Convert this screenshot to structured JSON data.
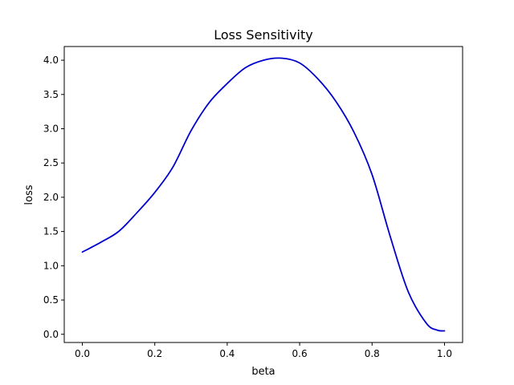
{
  "chart_data": {
    "type": "line",
    "title": "Loss Sensitivity",
    "xlabel": "beta",
    "ylabel": "loss",
    "xlim": [
      -0.05,
      1.05
    ],
    "ylim": [
      -0.12,
      4.2
    ],
    "xticks": [
      0.0,
      0.2,
      0.4,
      0.6,
      0.8,
      1.0
    ],
    "xtick_labels": [
      "0.0",
      "0.2",
      "0.4",
      "0.6",
      "0.8",
      "1.0"
    ],
    "yticks": [
      0.0,
      0.5,
      1.0,
      1.5,
      2.0,
      2.5,
      3.0,
      3.5,
      4.0
    ],
    "ytick_labels": [
      "0.0",
      "0.5",
      "1.0",
      "1.5",
      "2.0",
      "2.5",
      "3.0",
      "3.5",
      "4.0"
    ],
    "grid": false,
    "line_color": "#0000cc",
    "series": [
      {
        "x": [
          0.0,
          0.05,
          0.1,
          0.15,
          0.2,
          0.25,
          0.3,
          0.35,
          0.4,
          0.45,
          0.5,
          0.55,
          0.6,
          0.65,
          0.7,
          0.75,
          0.8,
          0.85,
          0.9,
          0.95,
          0.98,
          1.0
        ],
        "y": [
          1.2,
          1.34,
          1.5,
          1.77,
          2.07,
          2.44,
          2.97,
          3.38,
          3.66,
          3.89,
          4.0,
          4.03,
          3.96,
          3.73,
          3.4,
          2.95,
          2.33,
          1.43,
          0.62,
          0.16,
          0.06,
          0.05
        ]
      }
    ]
  }
}
